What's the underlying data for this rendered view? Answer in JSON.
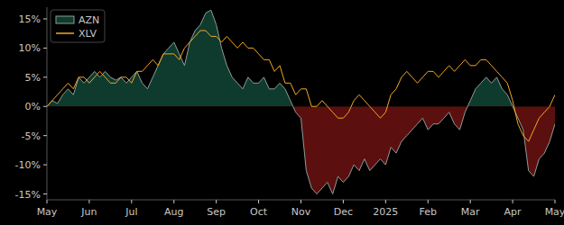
{
  "chart_data": {
    "type": "line",
    "categories": [
      "May",
      null,
      null,
      null,
      null,
      null,
      null,
      null,
      "Jun",
      null,
      null,
      null,
      null,
      null,
      null,
      null,
      "Jul",
      null,
      null,
      null,
      null,
      null,
      null,
      null,
      "Aug",
      null,
      null,
      null,
      null,
      null,
      null,
      null,
      "Sep",
      null,
      null,
      null,
      null,
      null,
      null,
      null,
      "Oct",
      null,
      null,
      null,
      null,
      null,
      null,
      null,
      "Nov",
      null,
      null,
      null,
      null,
      null,
      null,
      null,
      "Dec",
      null,
      null,
      null,
      null,
      null,
      null,
      null,
      "2025",
      null,
      null,
      null,
      null,
      null,
      null,
      null,
      "Feb",
      null,
      null,
      null,
      null,
      null,
      null,
      null,
      "Mar",
      null,
      null,
      null,
      null,
      null,
      null,
      null,
      "Apr",
      null,
      null,
      null,
      null,
      null,
      null,
      null,
      "May"
    ],
    "series": [
      {
        "name": "AZN",
        "color": "#8f9c96",
        "type": "area",
        "values": [
          0,
          1,
          0.5,
          2,
          3,
          2,
          5,
          4,
          5,
          6,
          5,
          6,
          5,
          4.5,
          5,
          4,
          5,
          6,
          4,
          3,
          5,
          7,
          9,
          10,
          11,
          9,
          7,
          11,
          13,
          14,
          16,
          16.5,
          14,
          10,
          7,
          5,
          4,
          3,
          5,
          4,
          4,
          5,
          3,
          3,
          4,
          3,
          1,
          -1,
          -2,
          -11,
          -14,
          -15,
          -14,
          -13,
          -15,
          -12,
          -13,
          -12,
          -10,
          -11,
          -9,
          -11,
          -10,
          -9,
          -10,
          -7,
          -8,
          -6,
          -5,
          -4,
          -3,
          -2,
          -4,
          -3,
          -3,
          -2,
          -1,
          -3,
          -4,
          -1,
          1,
          3,
          4,
          5,
          4,
          5,
          3,
          2,
          0,
          -2,
          -4,
          -11,
          -12,
          -9,
          -8,
          -6,
          -3
        ]
      },
      {
        "name": "XLV",
        "color": "#f5a623",
        "type": "line",
        "values": [
          0,
          1,
          2,
          3,
          4,
          3,
          5,
          5,
          4,
          5,
          6,
          5,
          4,
          4,
          5,
          5,
          4,
          6,
          6,
          7,
          8,
          7,
          9,
          9,
          9,
          8,
          10,
          11,
          12,
          13,
          13,
          12,
          12,
          11,
          12,
          11,
          10,
          11,
          10,
          10,
          9,
          8,
          8,
          6,
          7,
          4,
          4,
          2,
          3,
          3,
          0,
          0,
          1,
          0,
          -1,
          -2,
          -2,
          -1,
          1,
          2,
          1,
          0,
          -1,
          -2,
          -1,
          2,
          3,
          5,
          6,
          5,
          4,
          5,
          6,
          6,
          5,
          6,
          7,
          6,
          7,
          8,
          7,
          7,
          8,
          8,
          7,
          6,
          5,
          4,
          1,
          -3,
          -5,
          -6,
          -4,
          -2,
          -1,
          0,
          2
        ]
      }
    ],
    "ylim": [
      -16,
      17
    ],
    "yticks": [
      {
        "value": -15,
        "label": "-15%"
      },
      {
        "value": -10,
        "label": "-10%"
      },
      {
        "value": -5,
        "label": "-5%"
      },
      {
        "value": 0,
        "label": "0%"
      },
      {
        "value": 5,
        "label": "5%"
      },
      {
        "value": 10,
        "label": "10%"
      },
      {
        "value": 15,
        "label": "15%"
      }
    ],
    "grid": false,
    "legend": "upper left"
  }
}
